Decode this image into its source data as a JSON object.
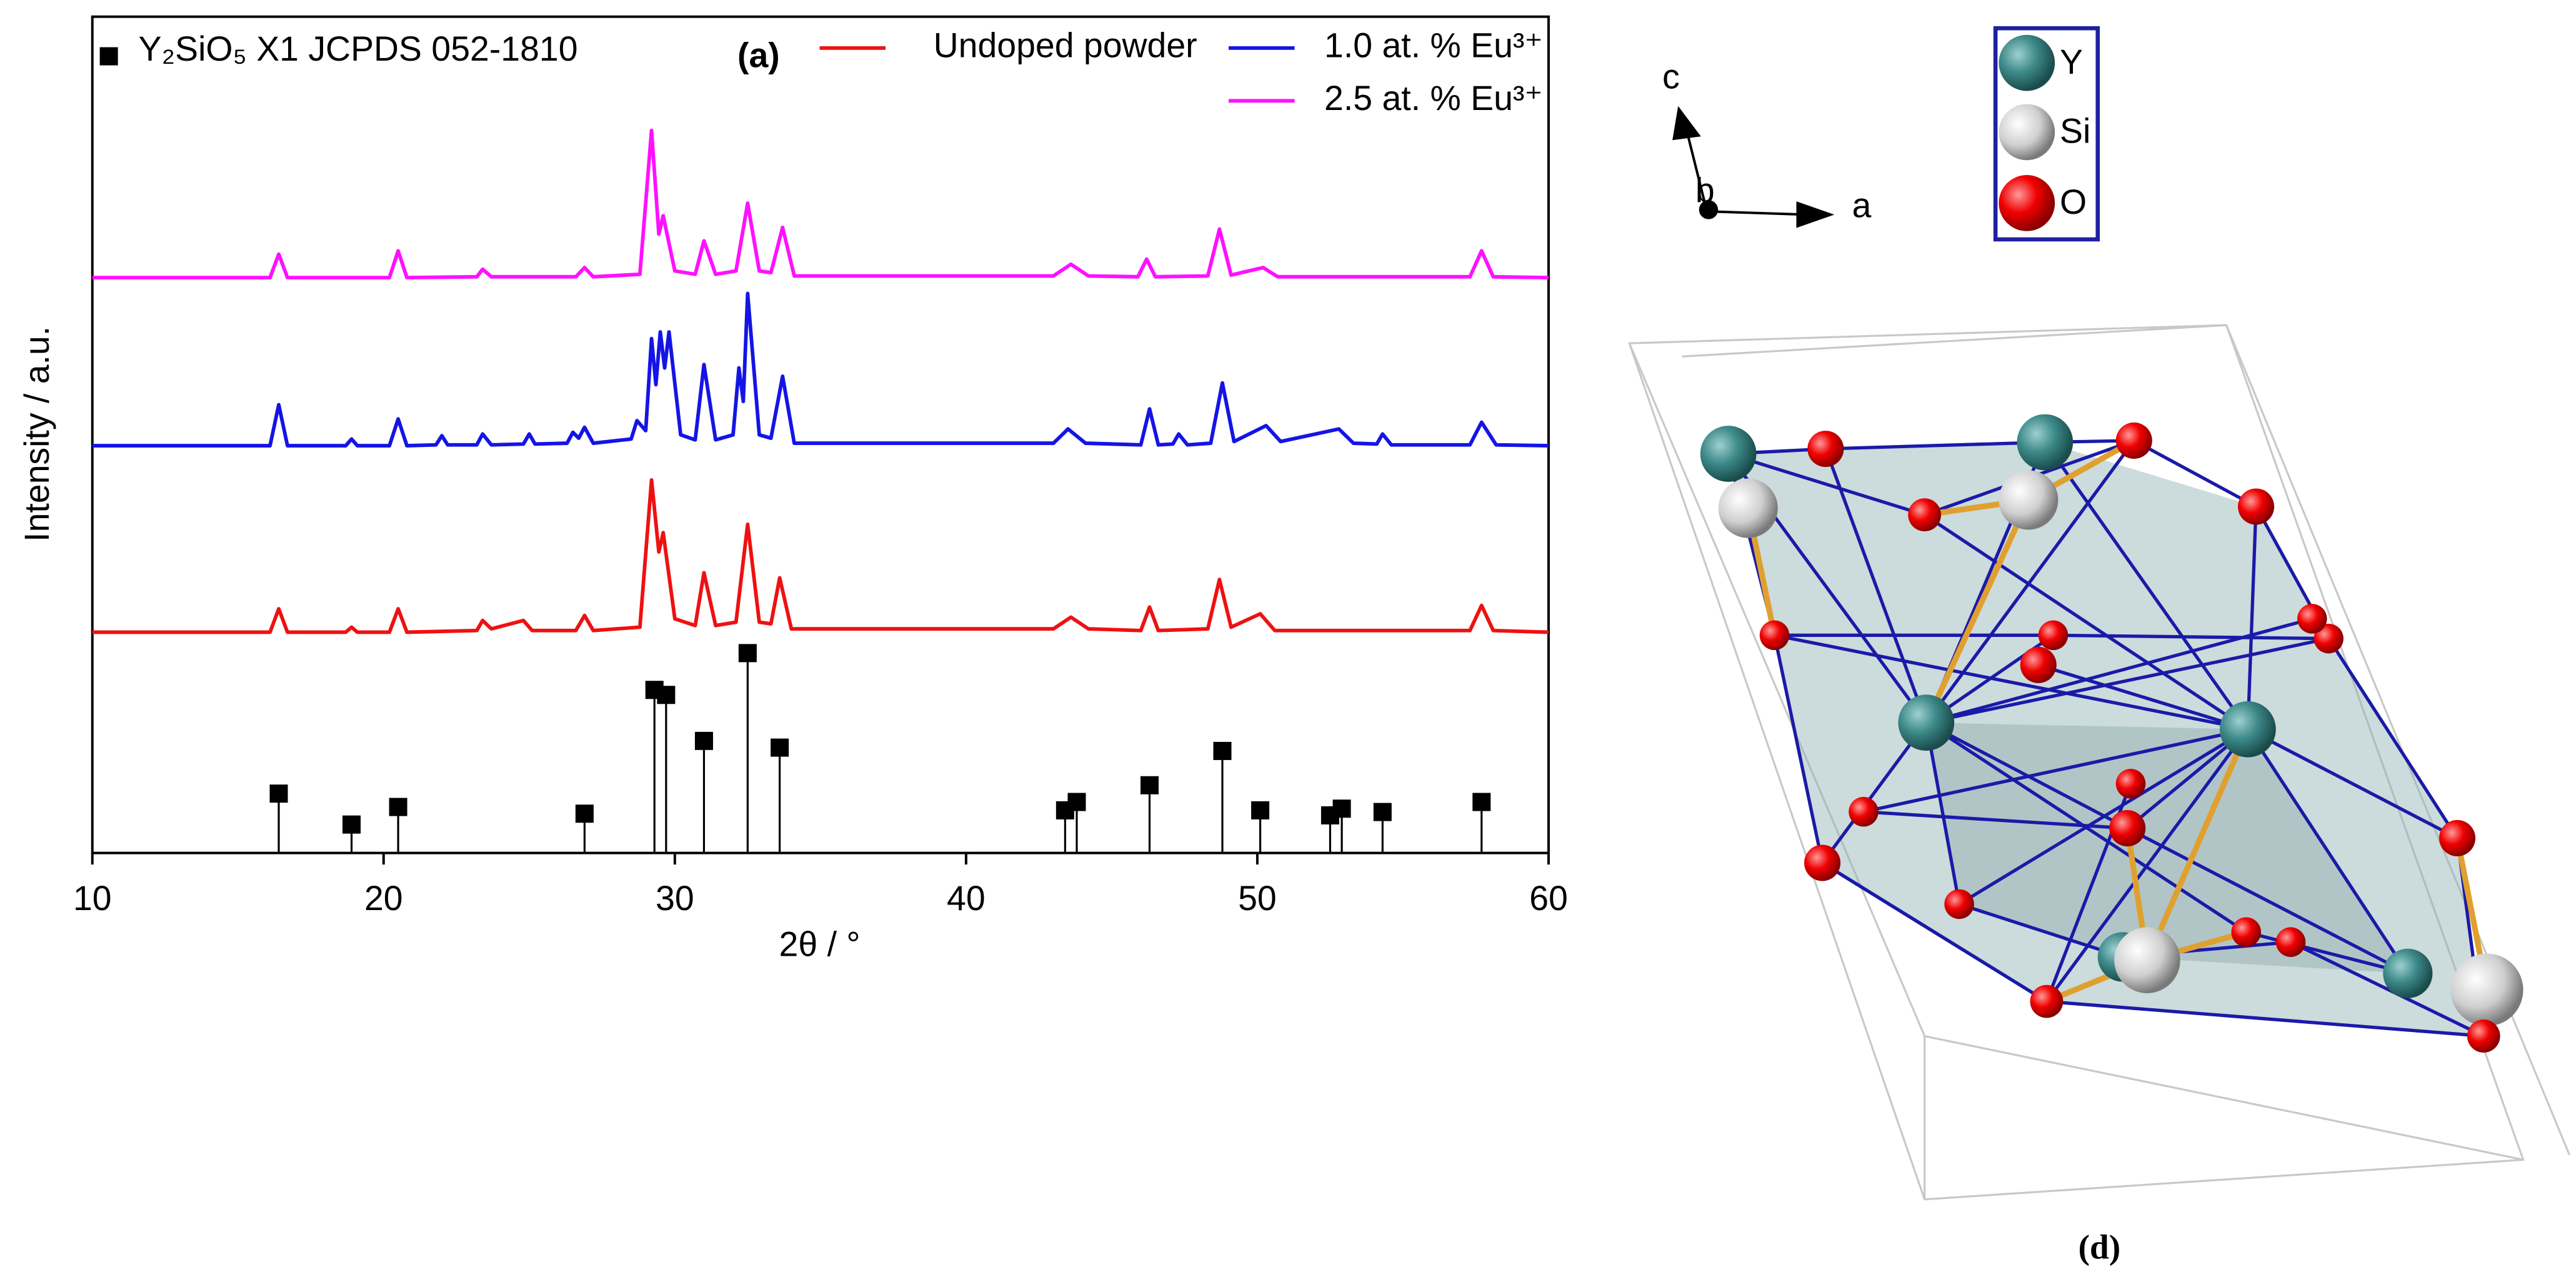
{
  "chart_data": {
    "type": "line",
    "xlabel": "2θ / °",
    "ylabel": "Intensity / a.u.",
    "annotation": "(a)",
    "xlim": [
      10,
      60
    ],
    "xticks": [
      10,
      20,
      30,
      40,
      50,
      60
    ],
    "ylim": [
      0,
      100
    ],
    "series": [
      {
        "name": "Y₂SiO₅ X1 JCPDS 052-1810",
        "type": "bar",
        "color": "#000000",
        "x": [
          16.4,
          18.9,
          20.5,
          26.9,
          29.3,
          29.7,
          31.0,
          32.5,
          33.6,
          43.4,
          43.8,
          46.3,
          48.8,
          50.1,
          52.5,
          52.9,
          54.3,
          57.7
        ],
        "values": [
          7.1,
          3.4,
          5.5,
          4.7,
          19.5,
          18.9,
          13.4,
          23.9,
          12.6,
          5.1,
          6.1,
          8.1,
          12.2,
          5.1,
          4.5,
          5.3,
          4.9,
          6.1
        ]
      },
      {
        "name": "Undoped powder",
        "color": "#ee1111",
        "x": [
          10,
          16.1,
          16.4,
          16.7,
          18.7,
          18.9,
          19.1,
          20.2,
          20.5,
          20.8,
          23.2,
          23.4,
          23.7,
          24.8,
          25.1,
          26.6,
          26.9,
          27.2,
          28.8,
          29.2,
          29.45,
          29.6,
          30.0,
          30.7,
          31.0,
          31.4,
          32.1,
          32.5,
          32.9,
          33.3,
          33.6,
          34.0,
          43.0,
          43.6,
          44.2,
          46.0,
          46.3,
          46.6,
          48.3,
          48.7,
          49.1,
          50.1,
          50.6,
          57.3,
          57.7,
          58.1,
          60
        ],
        "values": [
          26.4,
          26.4,
          29.2,
          26.4,
          26.4,
          27.0,
          26.4,
          26.4,
          29.2,
          26.4,
          26.6,
          27.8,
          26.8,
          27.8,
          26.6,
          26.6,
          28.4,
          26.6,
          27.0,
          44.6,
          36.0,
          38.3,
          28.0,
          27.2,
          33.5,
          27.2,
          27.6,
          39.3,
          27.6,
          27.4,
          32.9,
          26.8,
          26.8,
          28.2,
          26.8,
          26.6,
          29.4,
          26.6,
          26.8,
          32.7,
          27.0,
          28.6,
          26.6,
          26.6,
          29.6,
          26.6,
          26.4
        ]
      },
      {
        "name": "1.0 at. % Eu³⁺",
        "color": "#1414e6",
        "x": [
          10,
          16.1,
          16.4,
          16.7,
          18.7,
          18.9,
          19.1,
          20.2,
          20.5,
          20.8,
          21.8,
          22.0,
          22.2,
          23.2,
          23.4,
          23.7,
          24.8,
          25.0,
          25.2,
          26.3,
          26.5,
          26.7,
          26.9,
          27.2,
          28.5,
          28.7,
          29.0,
          29.2,
          29.35,
          29.5,
          29.65,
          29.8,
          30.2,
          30.7,
          31.0,
          31.4,
          32.0,
          32.2,
          32.35,
          32.5,
          32.9,
          33.3,
          33.7,
          34.1,
          43.0,
          43.5,
          44.1,
          46.0,
          46.3,
          46.6,
          47.1,
          47.3,
          47.6,
          48.4,
          48.8,
          49.2,
          50.3,
          50.8,
          52.8,
          53.3,
          54.1,
          54.3,
          54.6,
          57.3,
          57.7,
          58.2,
          60
        ],
        "values": [
          48.7,
          48.7,
          53.6,
          48.7,
          48.7,
          49.5,
          48.7,
          48.7,
          51.9,
          48.7,
          48.8,
          49.9,
          48.8,
          48.8,
          50.1,
          48.8,
          48.9,
          50.1,
          48.9,
          49.0,
          50.3,
          49.6,
          50.9,
          49.0,
          49.5,
          51.7,
          50.5,
          61.5,
          56.0,
          62.3,
          58.0,
          62.3,
          50.0,
          49.4,
          58.4,
          49.4,
          50.0,
          58.0,
          54.0,
          66.9,
          50.0,
          49.6,
          57.0,
          49.0,
          49.0,
          50.7,
          49.0,
          48.8,
          53.1,
          48.8,
          48.9,
          50.1,
          48.8,
          49.0,
          56.2,
          49.2,
          51.1,
          49.2,
          50.7,
          49.0,
          48.9,
          50.1,
          48.8,
          48.8,
          51.5,
          48.8,
          48.7
        ]
      },
      {
        "name": "2.5 at. % Eu³⁺",
        "color": "#ff10ff",
        "x": [
          10,
          16.1,
          16.4,
          16.7,
          20.2,
          20.5,
          20.8,
          23.2,
          23.4,
          23.7,
          26.6,
          26.9,
          27.2,
          28.8,
          29.2,
          29.45,
          29.6,
          30.0,
          30.7,
          31.0,
          31.4,
          32.1,
          32.5,
          32.9,
          33.3,
          33.7,
          34.1,
          43.0,
          43.6,
          44.2,
          45.9,
          46.2,
          46.5,
          48.3,
          48.7,
          49.1,
          50.2,
          50.7,
          57.3,
          57.7,
          58.1,
          60
        ],
        "values": [
          68.8,
          68.8,
          71.6,
          68.8,
          68.8,
          72.0,
          68.8,
          68.9,
          69.8,
          68.9,
          68.9,
          70.0,
          68.9,
          69.2,
          86.4,
          74.0,
          76.2,
          69.6,
          69.2,
          73.2,
          69.2,
          69.6,
          77.7,
          69.6,
          69.4,
          74.8,
          69.0,
          69.0,
          70.4,
          69.0,
          68.9,
          71.0,
          68.9,
          69.0,
          74.6,
          69.1,
          70.0,
          68.9,
          68.9,
          72.0,
          68.9,
          68.8
        ]
      }
    ]
  },
  "structure": {
    "axes": [
      "c",
      "b",
      "a"
    ],
    "legend": [
      "Y",
      "Si",
      "O"
    ],
    "label": "(d)"
  }
}
